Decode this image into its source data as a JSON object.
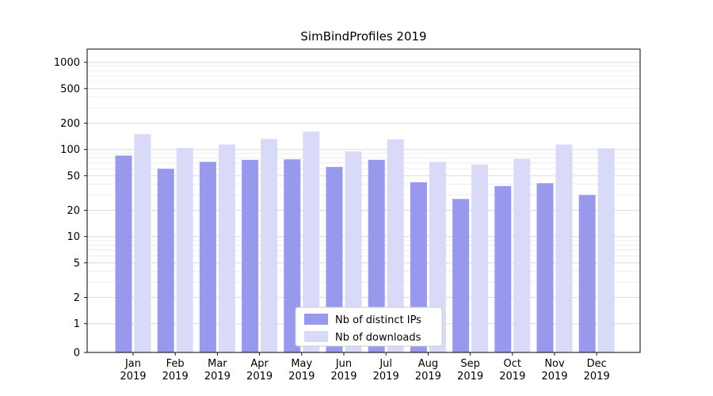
{
  "chart_data": {
    "type": "bar",
    "title": "SimBindProfiles 2019",
    "categories": [
      "Jan",
      "Feb",
      "Mar",
      "Apr",
      "May",
      "Jun",
      "Jul",
      "Aug",
      "Sep",
      "Oct",
      "Nov",
      "Dec"
    ],
    "category_year": "2019",
    "series": [
      {
        "name": "Nb of distinct IPs",
        "color": "#9898ec",
        "values": [
          85,
          60,
          72,
          76,
          77,
          63,
          76,
          42,
          27,
          38,
          41,
          30
        ]
      },
      {
        "name": "Nb of downloads",
        "color": "#d9d9f8",
        "values": [
          150,
          104,
          114,
          132,
          160,
          95,
          131,
          72,
          67,
          78,
          114,
          103
        ]
      }
    ],
    "y_ticks": [
      0,
      1,
      2,
      5,
      10,
      20,
      50,
      100,
      200,
      500,
      1000
    ],
    "y_scale": "symlog",
    "ylim": [
      0,
      1000
    ],
    "grid": true,
    "legend_position": "lower center"
  },
  "colors": {
    "background": "#ffffff",
    "axis": "#000000",
    "grid_major": "#d9d9d9",
    "grid_minor": "#ececec",
    "legend_border": "#cccccc",
    "tick_label": "#000000"
  }
}
